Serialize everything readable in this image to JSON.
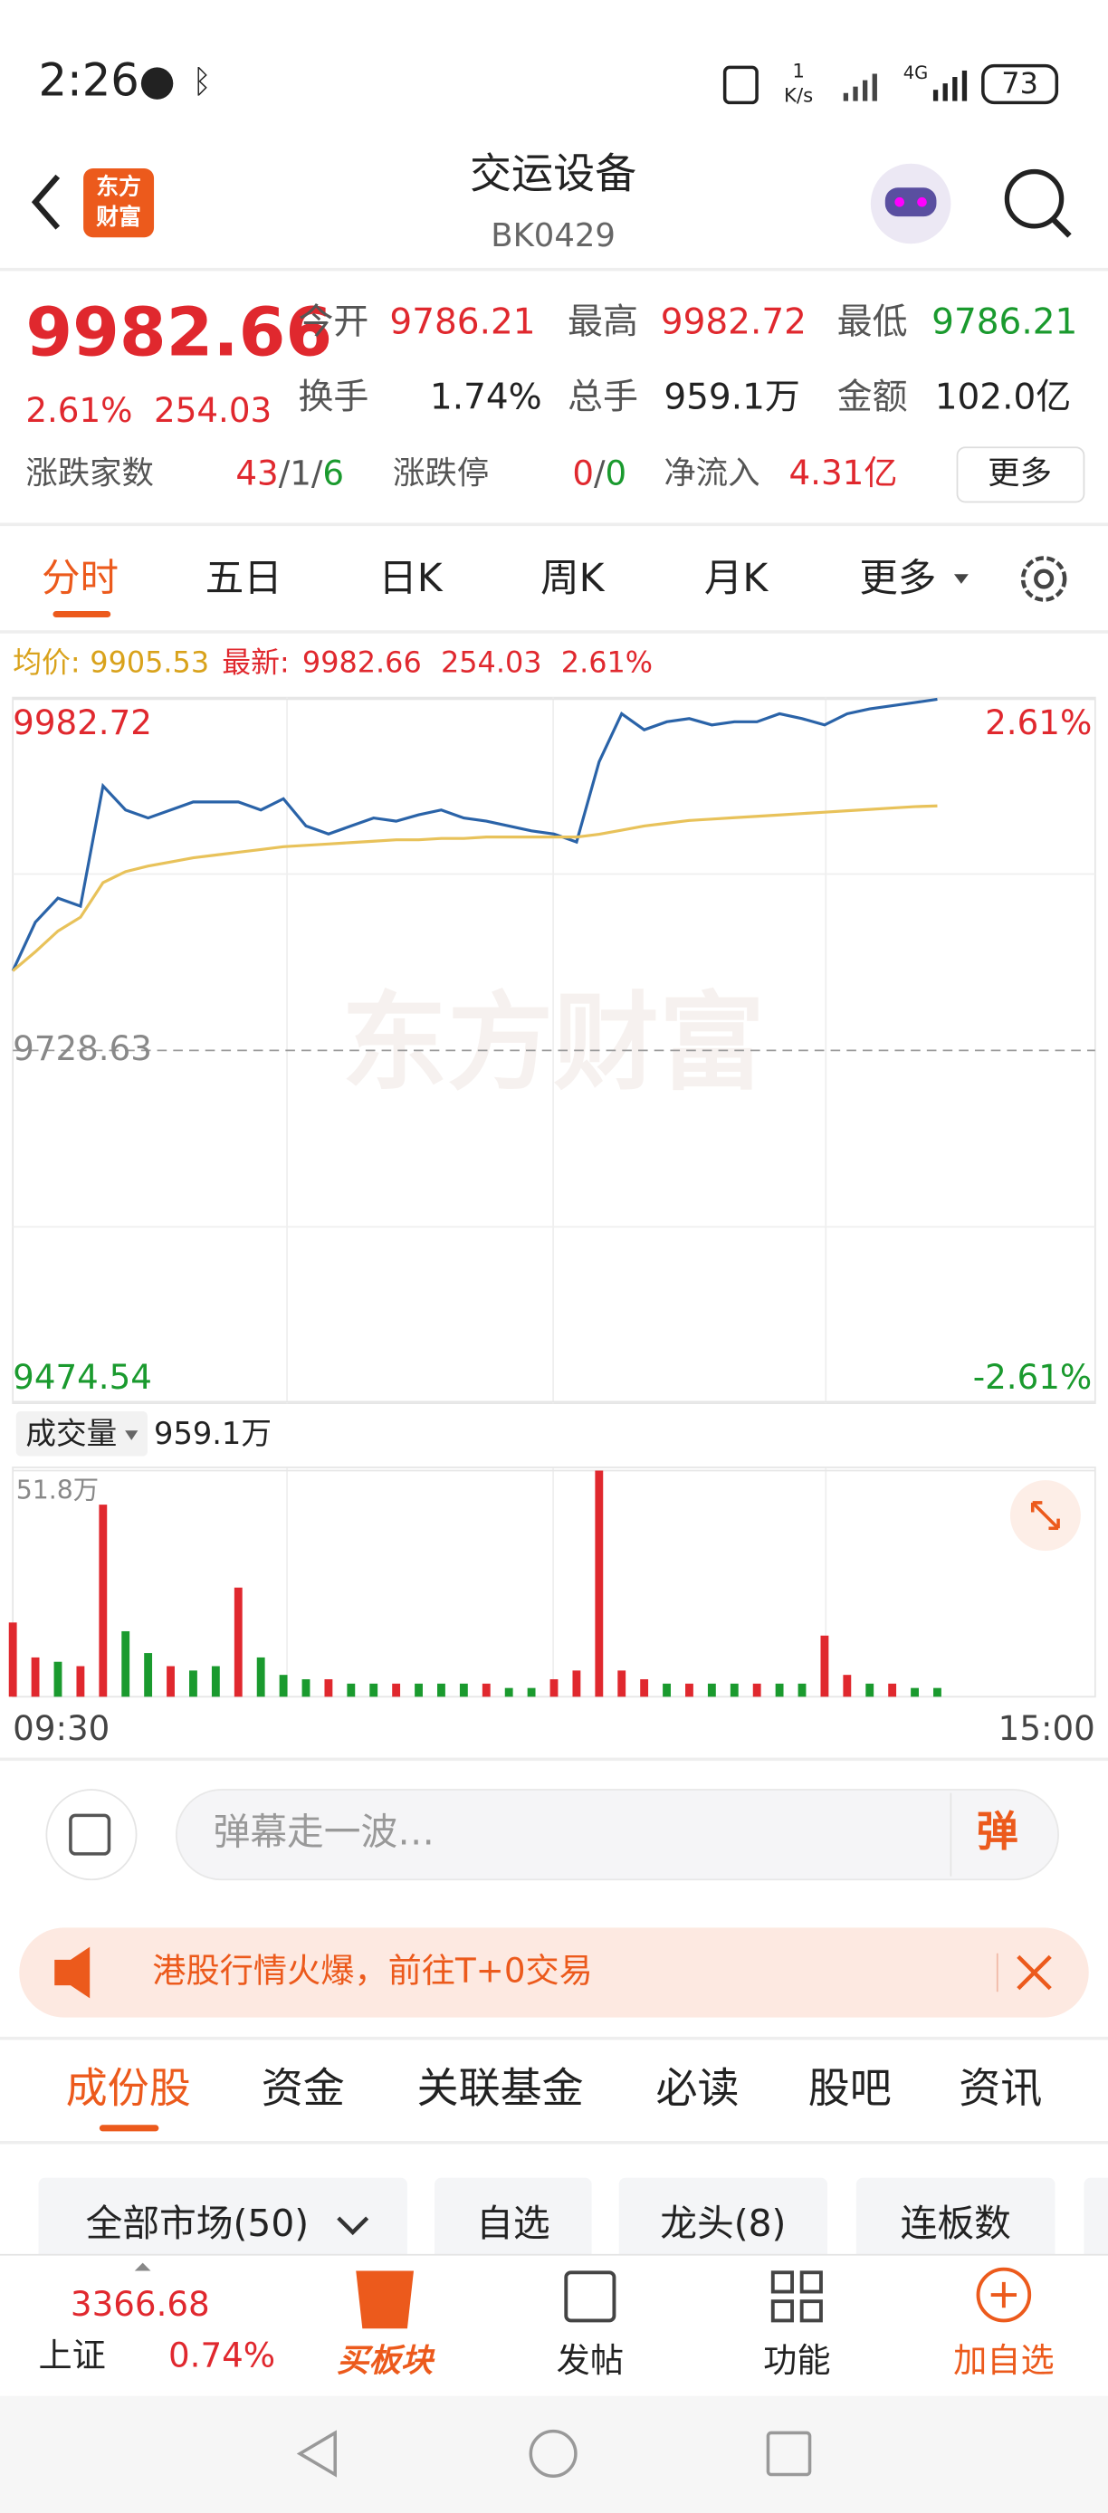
{
  "status_bar": {
    "time": "2:26",
    "net_speed": "1",
    "net_unit": "K/s",
    "network": "4G",
    "battery": "73"
  },
  "header": {
    "logo": [
      "东方",
      "财富"
    ],
    "title": "交运设备",
    "code": "BK0429"
  },
  "quote": {
    "price": "9982.66",
    "change_pct": "2.61%",
    "change": "254.03",
    "fields": [
      {
        "label": "今开",
        "value": "9786.21"
      },
      {
        "label": "最高",
        "value": "9982.72"
      },
      {
        "label": "最低",
        "value": "9786.21"
      },
      {
        "label": "换手",
        "value": "1.74%"
      },
      {
        "label": "总手",
        "value": "959.1万"
      },
      {
        "label": "金额",
        "value": "102.0亿"
      }
    ],
    "breadth_label": "涨跌家数",
    "breadth": [
      "43",
      "/",
      "1",
      "/",
      "6"
    ],
    "limit_label": "涨跌停",
    "limit": [
      "0",
      "/",
      "0"
    ],
    "netflow_label": "净流入",
    "netflow": "4.31亿",
    "more": "更多"
  },
  "tabs": [
    "分时",
    "五日",
    "日K",
    "周K",
    "月K",
    "更多"
  ],
  "summary": {
    "avg_label": "均价:",
    "avg": "9905.53",
    "latest_label": "最新:",
    "latest": "9982.66",
    "change": "254.03",
    "change_pct": "2.61%"
  },
  "watermark": "东方财富",
  "chart_data": [
    {
      "type": "line",
      "categories": [
        "09:30",
        null,
        null,
        null,
        null,
        null,
        null,
        null,
        null,
        null,
        null,
        null,
        null,
        null,
        null,
        null,
        null,
        null,
        null,
        null,
        null,
        null,
        null,
        null,
        null,
        null,
        null,
        null,
        null,
        null,
        null,
        null,
        null,
        null,
        null,
        null,
        null,
        null,
        null,
        null,
        null,
        null,
        null,
        null,
        null,
        null,
        null,
        null,
        "15:00"
      ],
      "ylim": [
        9474.54,
        9982.72
      ],
      "yticks": [
        9474.54,
        9728.63,
        9982.72
      ],
      "y2lim": [
        -2.61,
        2.61
      ],
      "y2ticks": [
        {
          "value": 2.61,
          "label": "2.61%"
        },
        {
          "value": -2.61,
          "label": "-2.61%"
        }
      ],
      "series": [
        {
          "color": "#2a63a8",
          "values": [
            9786.21,
            9821.4,
            9838.8,
            9833.0,
            9920.0,
            9902.6,
            9896.8,
            9902.6,
            9908.4,
            9908.4,
            9908.4,
            9902.6,
            9910.7,
            9891.0,
            9885.2,
            9891.0,
            9896.8,
            9894.5,
            9899.1,
            9902.6,
            9896.8,
            9894.5,
            9891.0,
            9887.5,
            9885.2,
            9879.4,
            9937.4,
            9972.2,
            9960.6,
            9966.4,
            9968.7,
            9964.1,
            9966.4,
            9966.4,
            9972.2,
            9968.7,
            9964.1,
            9972.2,
            9975.7,
            9978.0,
            9980.3,
            9982.66,
            null,
            null,
            null,
            null,
            null,
            null,
            null
          ]
        },
        {
          "color": "#e8c25a",
          "values": [
            9786.21,
            9800,
            9815,
            9825,
            9850,
            9858,
            9862,
            9865,
            9868,
            9870,
            9872,
            9874,
            9876,
            9877,
            9878,
            9879,
            9880,
            9881,
            9881,
            9882,
            9882,
            9883,
            9883,
            9883,
            9883,
            9883,
            9885,
            9888,
            9891,
            9893,
            9895,
            9896,
            9897,
            9898,
            9899,
            9900,
            9901,
            9902,
            9903,
            9904,
            9905,
            9905.53,
            null,
            null,
            null,
            null,
            null,
            null,
            null
          ]
        }
      ]
    },
    {
      "type": "bar",
      "label": "成交量",
      "total": "959.1万",
      "ylim": [
        0,
        51.8
      ],
      "yticks": [
        {
          "value": 51.8,
          "label": "51.8万"
        }
      ],
      "values": [
        17,
        9,
        8,
        7,
        44,
        15,
        10,
        7,
        6,
        7,
        25,
        9,
        5,
        4,
        4,
        3,
        3,
        3,
        3,
        3,
        3,
        3,
        2,
        2,
        4,
        6,
        51.8,
        6,
        4,
        3,
        3,
        3,
        3,
        3,
        3,
        3,
        14,
        5,
        3,
        3,
        2,
        2,
        null,
        null,
        null,
        null,
        null,
        null,
        null
      ],
      "colors": [
        "#e0282e",
        "#e0282e",
        "#1a9a2e",
        "#e0282e",
        "#e0282e",
        "#1a9a2e",
        "#1a9a2e",
        "#e0282e",
        "#1a9a2e",
        "#1a9a2e",
        "#e0282e",
        "#1a9a2e",
        "#1a9a2e",
        "#1a9a2e",
        "#e0282e",
        "#1a9a2e",
        "#1a9a2e",
        "#e0282e",
        "#1a9a2e",
        "#1a9a2e",
        "#1a9a2e",
        "#e0282e",
        "#1a9a2e",
        "#1a9a2e",
        "#e0282e",
        "#e0282e",
        "#e0282e",
        "#e0282e",
        "#e0282e",
        "#1a9a2e",
        "#e0282e",
        "#1a9a2e",
        "#1a9a2e",
        "#e0282e",
        "#1a9a2e",
        "#1a9a2e",
        "#e0282e",
        "#e0282e",
        "#1a9a2e",
        "#e0282e",
        "#1a9a2e",
        "#1a9a2e",
        null,
        null,
        null,
        null,
        null,
        null,
        null
      ]
    }
  ],
  "danmaku": {
    "placeholder": "弹幕走一波…",
    "button": "弹"
  },
  "banner": {
    "text": "港股行情火爆，前往T+0交易"
  },
  "sections": [
    "成份股",
    "资金",
    "关联基金",
    "必读",
    "股吧",
    "资讯"
  ],
  "filters": [
    "全部市场(50)",
    "自选",
    "龙头(8)",
    "连板数"
  ],
  "bottom_nav": {
    "index_value": "3366.68",
    "index_name": "上证",
    "index_change": "0.74%",
    "items": [
      "买板块",
      "发帖",
      "功能",
      "加自选"
    ]
  }
}
